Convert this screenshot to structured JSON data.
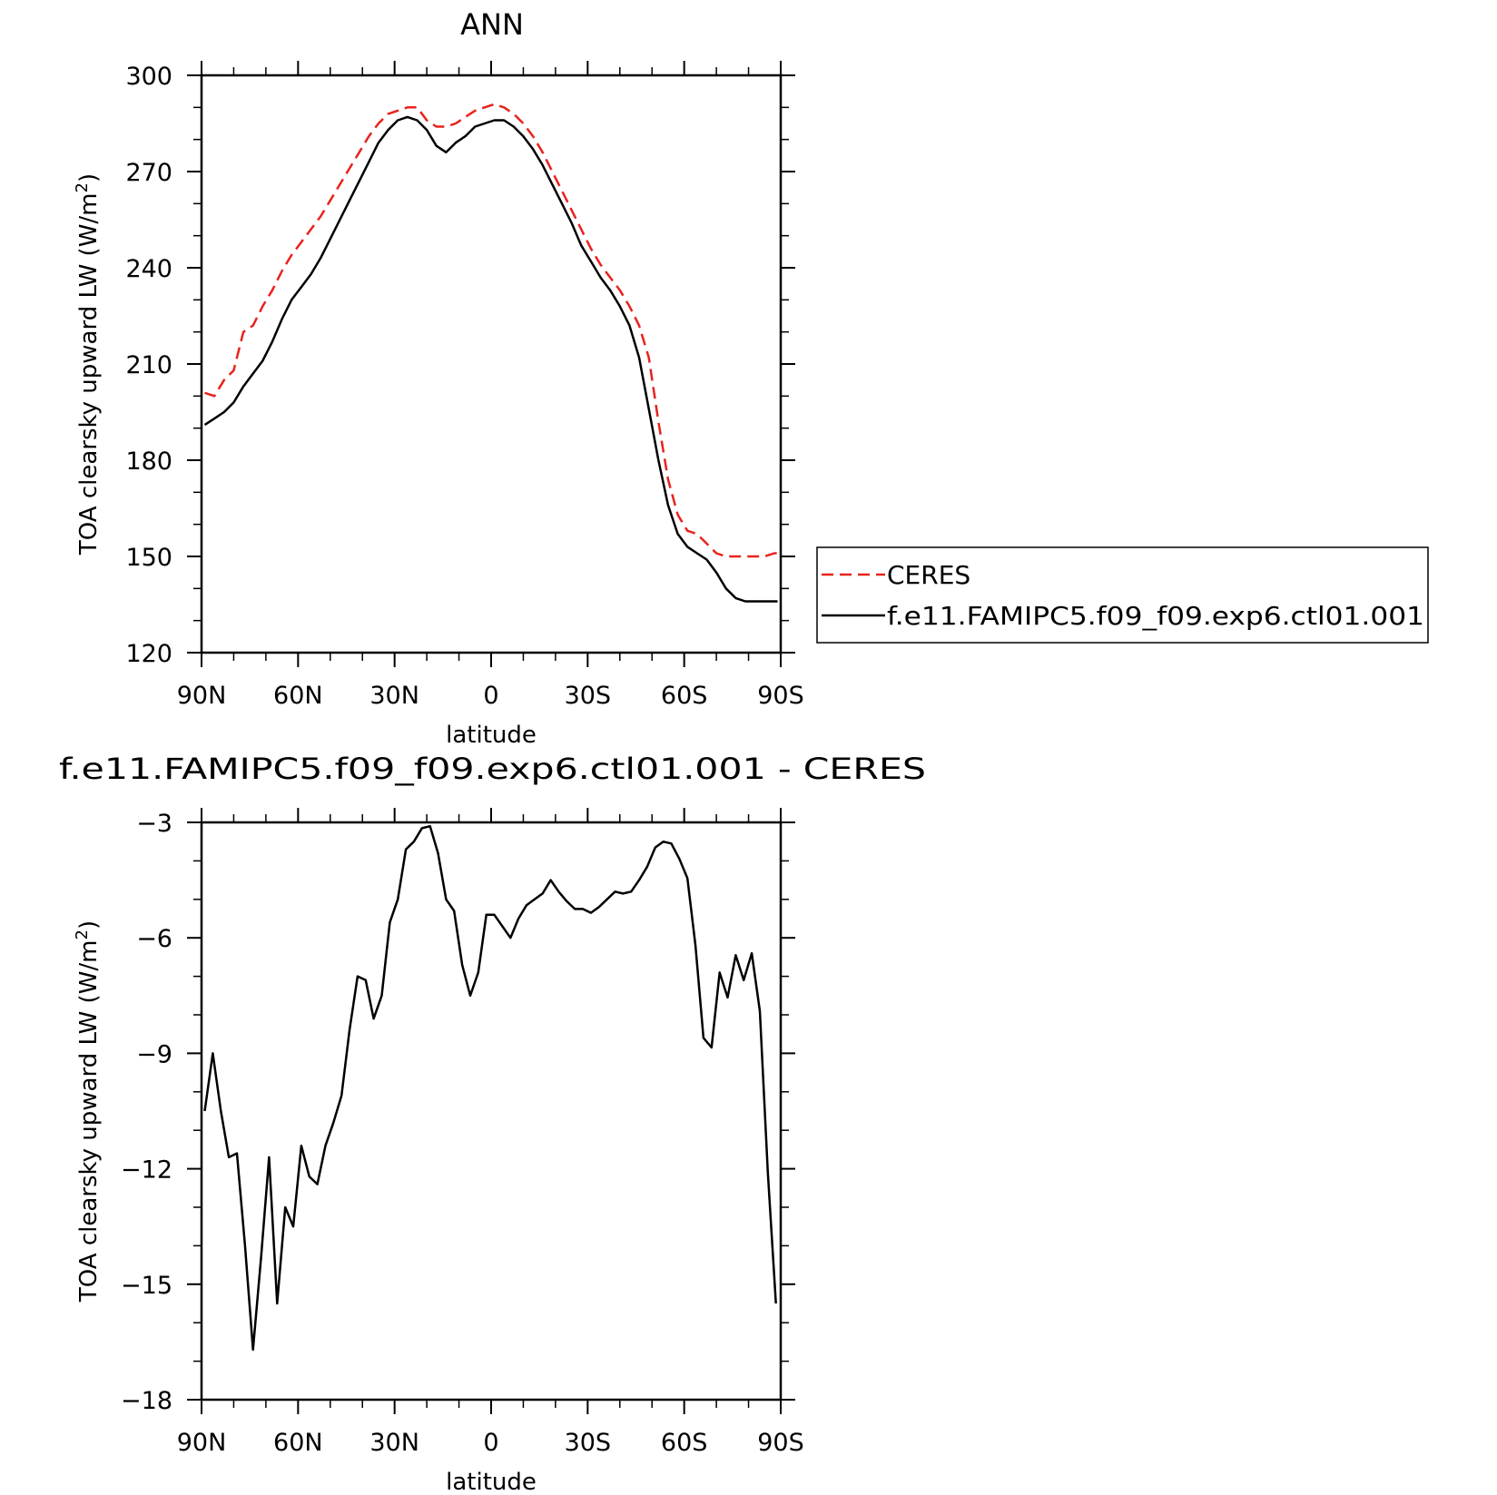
{
  "chart_data": [
    {
      "type": "line",
      "title": "ANN",
      "xlabel": "latitude",
      "ylabel": "TOA clearsky upward LW (W/m²)",
      "ylabel_main": "TOA clearsky upward LW (W/m",
      "ylabel_sup": "2",
      "ylabel_end": ")",
      "xlim": [
        90,
        -90
      ],
      "ylim": [
        120,
        300
      ],
      "xticks": [
        90,
        60,
        30,
        0,
        -30,
        -60,
        -90
      ],
      "xtick_labels": [
        "90N",
        "60N",
        "30N",
        "0",
        "30S",
        "60S",
        "90S"
      ],
      "yticks": [
        120,
        150,
        180,
        210,
        240,
        270,
        300
      ],
      "ytick_labels": [
        "120",
        "150",
        "180",
        "210",
        "240",
        "270",
        "300"
      ],
      "legend_position": "right",
      "series": [
        {
          "name": "CERES",
          "color": "#e8221d",
          "dash": true,
          "x": [
            89,
            86,
            83,
            80,
            77,
            74,
            71,
            68,
            65,
            62,
            59,
            56,
            53,
            50,
            47,
            44,
            41,
            38,
            35,
            32,
            29,
            26,
            23,
            20,
            17,
            14,
            11,
            8,
            5,
            2,
            -1,
            -4,
            -7,
            -10,
            -13,
            -16,
            -19,
            -22,
            -25,
            -28,
            -31,
            -34,
            -37,
            -40,
            -43,
            -46,
            -49,
            -52,
            -55,
            -58,
            -61,
            -64,
            -67,
            -70,
            -73,
            -76,
            -79,
            -82,
            -85,
            -88,
            -89
          ],
          "values": [
            201,
            200,
            205,
            208,
            220,
            222,
            228,
            233,
            239,
            244,
            248,
            252,
            256,
            261,
            266,
            271,
            276,
            281,
            285,
            288,
            289,
            290,
            290,
            286,
            284,
            284,
            285,
            287,
            289,
            290,
            291,
            290,
            288,
            285,
            281,
            276,
            270,
            264,
            258,
            252,
            246,
            241,
            237,
            233,
            228,
            222,
            212,
            192,
            174,
            163,
            158,
            157,
            154,
            151,
            150,
            150,
            150,
            150,
            150,
            151,
            151
          ]
        },
        {
          "name": "f.e11.FAMIPC5.f09_f09.exp6.ctl01.001",
          "color": "#000000",
          "dash": false,
          "x": [
            89,
            86,
            83,
            80,
            77,
            74,
            71,
            68,
            65,
            62,
            59,
            56,
            53,
            50,
            47,
            44,
            41,
            38,
            35,
            32,
            29,
            26,
            23,
            20,
            17,
            14,
            11,
            8,
            5,
            2,
            -1,
            -4,
            -7,
            -10,
            -13,
            -16,
            -19,
            -22,
            -25,
            -28,
            -31,
            -34,
            -37,
            -40,
            -43,
            -46,
            -49,
            -52,
            -55,
            -58,
            -61,
            -64,
            -67,
            -70,
            -73,
            -76,
            -79,
            -82,
            -85,
            -88,
            -89
          ],
          "values": [
            191,
            193,
            195,
            198,
            203,
            207,
            211,
            217,
            224,
            230,
            234,
            238,
            243,
            249,
            255,
            261,
            267,
            273,
            279,
            283,
            286,
            287,
            286,
            283,
            278,
            276,
            279,
            281,
            284,
            285,
            286,
            286,
            284,
            281,
            277,
            272,
            266,
            260,
            254,
            247,
            242,
            237,
            233,
            228,
            222,
            212,
            196,
            180,
            166,
            157,
            153,
            151,
            149,
            145,
            140,
            137,
            136,
            136,
            136,
            136,
            136
          ]
        }
      ]
    },
    {
      "type": "line",
      "title": "f.e11.FAMIPC5.f09_f09.exp6.ctl01.001  -  CERES",
      "xlabel": "latitude",
      "ylabel": "TOA clearsky upward LW (W/m²)",
      "ylabel_main": "TOA clearsky upward LW (W/m",
      "ylabel_sup": "2",
      "ylabel_end": ")",
      "xlim": [
        90,
        -90
      ],
      "ylim": [
        -18,
        -3
      ],
      "xticks": [
        90,
        60,
        30,
        0,
        -30,
        -60,
        -90
      ],
      "xtick_labels": [
        "90N",
        "60N",
        "30N",
        "0",
        "30S",
        "60S",
        "90S"
      ],
      "yticks": [
        -18,
        -15,
        -12,
        -9,
        -6,
        -3
      ],
      "ytick_labels": [
        "−18",
        "−15",
        "−12",
        "−9",
        "−6",
        "−3"
      ],
      "series": [
        {
          "color": "#000000",
          "dash": false,
          "x": [
            89,
            86.5,
            84,
            81.5,
            79,
            76.5,
            74,
            71.5,
            69,
            66.5,
            64,
            61.5,
            59,
            56.5,
            54,
            51.5,
            49,
            46.5,
            44,
            41.5,
            39,
            36.5,
            34,
            31.5,
            29,
            26.5,
            24,
            21.5,
            19,
            16.5,
            14,
            11.5,
            9,
            6.5,
            4,
            1.5,
            -1,
            -3.5,
            -6,
            -8.5,
            -11,
            -13.5,
            -16,
            -18.5,
            -21,
            -23.5,
            -26,
            -28.5,
            -31,
            -33.5,
            -36,
            -38.5,
            -41,
            -43.5,
            -46,
            -48.5,
            -51,
            -53.5,
            -56,
            -58.5,
            -61,
            -63.5,
            -66,
            -68.5,
            -71,
            -73.5,
            -76,
            -78.5,
            -81,
            -83.5,
            -86,
            -88.5
          ],
          "values": [
            -10.5,
            -9,
            -10.5,
            -11.7,
            -11.6,
            -14,
            -16.7,
            -14.3,
            -11.7,
            -15.5,
            -13,
            -13.5,
            -11.4,
            -12.2,
            -12.4,
            -11.4,
            -10.8,
            -10.1,
            -8.4,
            -7,
            -7.1,
            -8.1,
            -7.5,
            -5.6,
            -5,
            -3.7,
            -3.5,
            -3.15,
            -3.1,
            -3.8,
            -5,
            -5.3,
            -6.7,
            -7.5,
            -6.9,
            -5.4,
            -5.4,
            -5.7,
            -6,
            -5.5,
            -5.15,
            -5,
            -4.85,
            -4.5,
            -4.8,
            -5.05,
            -5.25,
            -5.25,
            -5.35,
            -5.2,
            -5,
            -4.8,
            -4.85,
            -4.8,
            -4.5,
            -4.15,
            -3.65,
            -3.5,
            -3.55,
            -3.95,
            -4.45,
            -6.2,
            -8.6,
            -8.85,
            -6.9,
            -7.55,
            -6.45,
            -7.1,
            -6.4,
            -7.9,
            -12.1,
            -15.5
          ]
        }
      ]
    }
  ]
}
